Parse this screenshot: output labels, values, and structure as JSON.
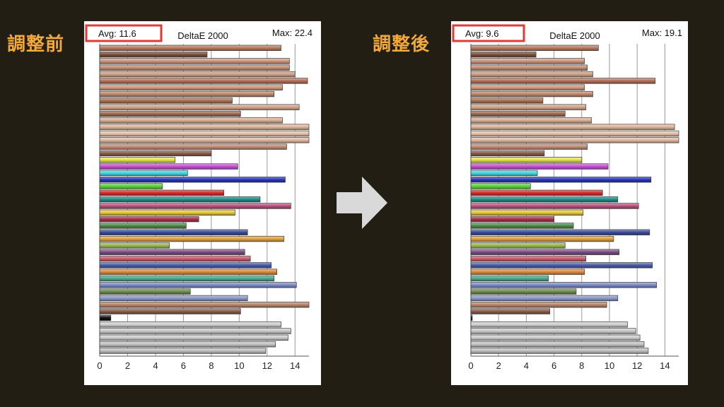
{
  "labels": {
    "before": "調整前",
    "after": "調整後"
  },
  "colors": {
    "accent": "#f2a93b",
    "background": "#221e13",
    "highlight": "#e53935",
    "arrow": "#d9d9d9"
  },
  "chart_data": [
    {
      "type": "bar",
      "orientation": "horizontal",
      "title": "DeltaE 2000",
      "avg_label": "Avg: 11.6",
      "max_label": "Max: 22.4",
      "xlim": [
        0,
        15
      ],
      "xticks": [
        0,
        2,
        4,
        6,
        8,
        10,
        12,
        14
      ],
      "grid": true,
      "values": [
        13.0,
        7.7,
        13.6,
        13.6,
        14.0,
        14.9,
        13.1,
        12.5,
        9.5,
        14.3,
        10.1,
        13.1,
        15,
        15,
        15,
        13.4,
        8.0,
        5.4,
        9.9,
        6.3,
        13.3,
        4.5,
        8.9,
        11.5,
        13.7,
        9.7,
        7.1,
        6.2,
        10.6,
        13.2,
        5.0,
        10.4,
        10.8,
        12.3,
        12.7,
        12.5,
        14.1,
        6.5,
        10.6,
        15,
        10.1,
        0.8,
        13.0,
        13.7,
        13.5,
        12.6,
        11.9
      ],
      "colors": [
        "#b87a5e",
        "#7a4f3c",
        "#c9977c",
        "#c48d72",
        "#d09f84",
        "#b46f56",
        "#cf9a7c",
        "#c0876a",
        "#a8704f",
        "#d3a48a",
        "#9c6a52",
        "#d9ad92",
        "#e0b49a",
        "#e8c2ab",
        "#e3b89f",
        "#c28c74",
        "#8a5c48",
        "#e5e24a",
        "#c84cd1",
        "#46d6e2",
        "#2a35b8",
        "#56d43a",
        "#d62d2d",
        "#1f8b86",
        "#b8507c",
        "#e8c83a",
        "#a8304a",
        "#4a8a4a",
        "#3a4a9a",
        "#e0a040",
        "#9ab84a",
        "#7a4a82",
        "#c85a6a",
        "#4a5aaa",
        "#e0883a",
        "#4aa88a",
        "#7a8ac8",
        "#6a8a4a",
        "#8a9ac8",
        "#b8866a",
        "#8a5a4a",
        "#111111",
        "#d0d0d0",
        "#c8c8c8",
        "#cccccc",
        "#c4c4c4",
        "#bdbdbd"
      ]
    },
    {
      "type": "bar",
      "orientation": "horizontal",
      "title": "DeltaE 2000",
      "avg_label": "Avg: 9.6",
      "max_label": "Max: 19.1",
      "xlim": [
        0,
        15
      ],
      "xticks": [
        0,
        2,
        4,
        6,
        8,
        10,
        12,
        14
      ],
      "grid": true,
      "values": [
        9.2,
        4.7,
        8.2,
        8.4,
        8.8,
        13.3,
        8.2,
        8.8,
        5.2,
        8.3,
        6.8,
        8.7,
        14.7,
        15,
        15,
        8.4,
        5.3,
        8.0,
        9.9,
        4.8,
        13.0,
        4.3,
        9.5,
        10.6,
        12.1,
        8.1,
        6.0,
        7.4,
        12.9,
        10.3,
        6.8,
        10.7,
        8.3,
        13.1,
        8.2,
        5.6,
        13.4,
        7.6,
        10.6,
        9.8,
        5.7,
        0.1,
        11.3,
        11.9,
        12.2,
        12.5,
        12.8
      ],
      "colors": [
        "#b87a5e",
        "#7a4f3c",
        "#c9977c",
        "#c48d72",
        "#d09f84",
        "#b46f56",
        "#cf9a7c",
        "#c0876a",
        "#a8704f",
        "#d3a48a",
        "#9c6a52",
        "#d9ad92",
        "#e0b49a",
        "#e8c2ab",
        "#e3b89f",
        "#c28c74",
        "#8a5c48",
        "#e5e24a",
        "#c84cd1",
        "#46d6e2",
        "#2a35b8",
        "#56d43a",
        "#d62d2d",
        "#1f8b86",
        "#b8507c",
        "#e8c83a",
        "#a8304a",
        "#4a8a4a",
        "#3a4a9a",
        "#e0a040",
        "#9ab84a",
        "#7a4a82",
        "#c85a6a",
        "#4a5aaa",
        "#e0883a",
        "#4aa88a",
        "#7a8ac8",
        "#6a8a4a",
        "#8a9ac8",
        "#b8866a",
        "#8a5a4a",
        "#111111",
        "#d0d0d0",
        "#c8c8c8",
        "#cccccc",
        "#c4c4c4",
        "#bdbdbd"
      ]
    }
  ]
}
